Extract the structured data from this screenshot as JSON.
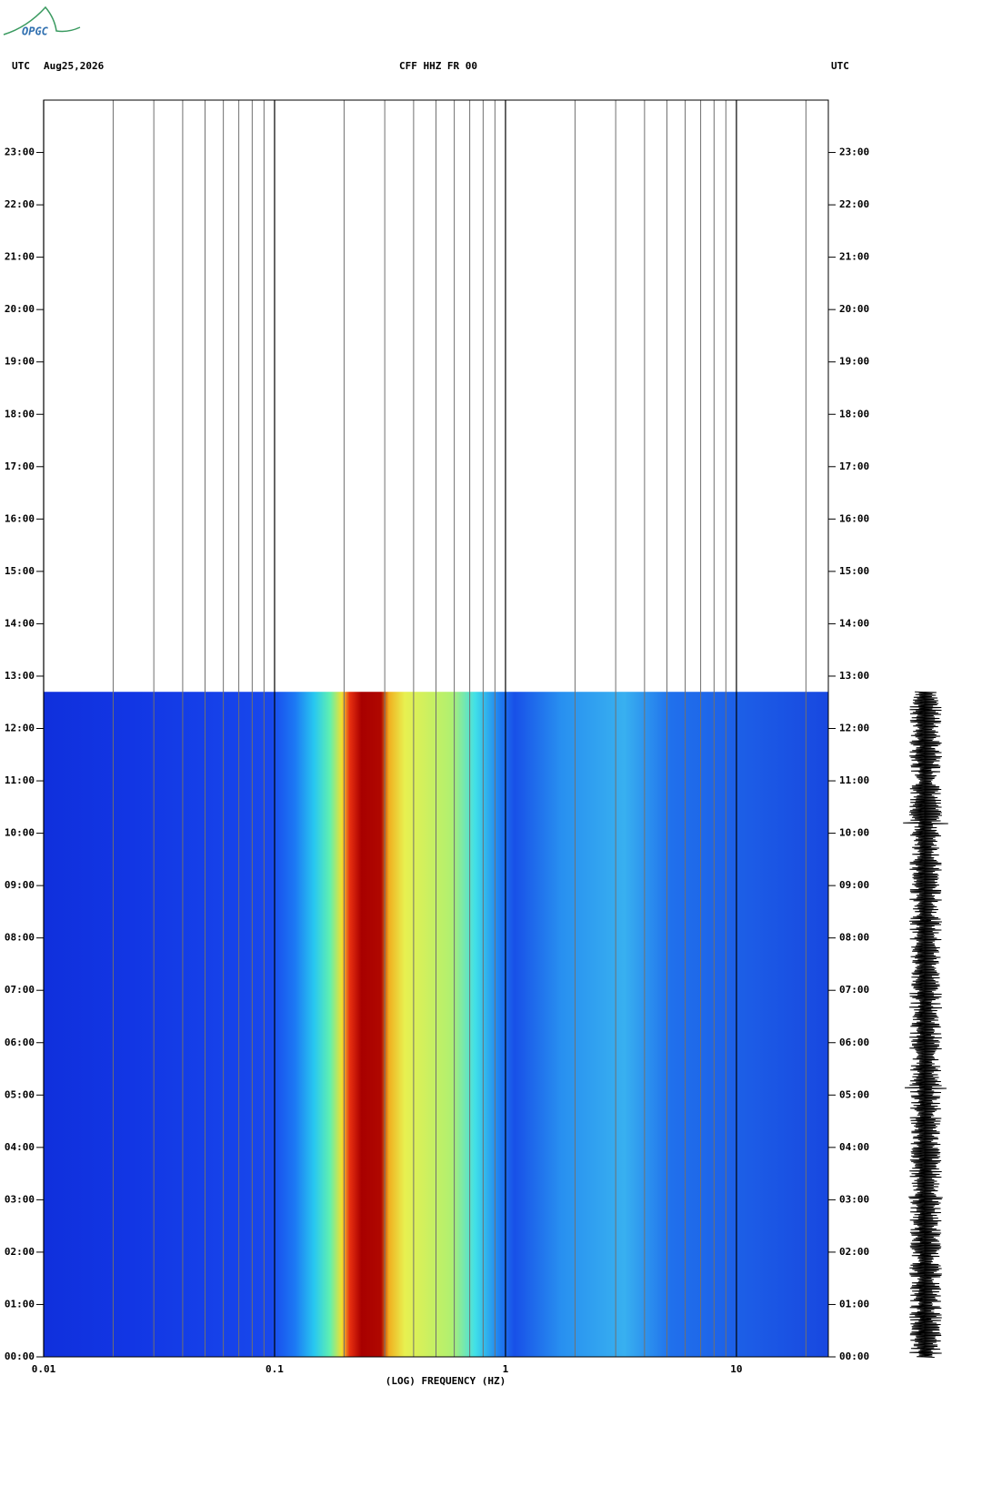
{
  "header": {
    "logo": "OPGC",
    "left_tz": "UTC",
    "date": "Aug25,2026",
    "station": "CFF HHZ FR 00",
    "right_tz": "UTC"
  },
  "chart_data": {
    "type": "spectrogram",
    "x_label": "(LOG) FREQUENCY (HZ)",
    "x_scale": "log",
    "xlim": [
      0.01,
      25
    ],
    "xticks": [
      0.01,
      0.1,
      1,
      10
    ],
    "xminorticks": [
      0.02,
      0.03,
      0.04,
      0.05,
      0.06,
      0.07,
      0.08,
      0.09,
      0.2,
      0.3,
      0.4,
      0.5,
      0.6,
      0.7,
      0.8,
      0.9,
      2,
      3,
      4,
      5,
      6,
      7,
      8,
      9,
      20
    ],
    "ylim": [
      0,
      24
    ],
    "yticks": [
      {
        "value": 0,
        "label": "00:00"
      },
      {
        "value": 1,
        "label": "01:00"
      },
      {
        "value": 2,
        "label": "02:00"
      },
      {
        "value": 3,
        "label": "03:00"
      },
      {
        "value": 4,
        "label": "04:00"
      },
      {
        "value": 5,
        "label": "05:00"
      },
      {
        "value": 6,
        "label": "06:00"
      },
      {
        "value": 7,
        "label": "07:00"
      },
      {
        "value": 8,
        "label": "08:00"
      },
      {
        "value": 9,
        "label": "09:00"
      },
      {
        "value": 10,
        "label": "10:00"
      },
      {
        "value": 11,
        "label": "11:00"
      },
      {
        "value": 12,
        "label": "12:00"
      },
      {
        "value": 13,
        "label": "13:00"
      },
      {
        "value": 14,
        "label": "14:00"
      },
      {
        "value": 15,
        "label": "15:00"
      },
      {
        "value": 16,
        "label": "16:00"
      },
      {
        "value": 17,
        "label": "17:00"
      },
      {
        "value": 18,
        "label": "18:00"
      },
      {
        "value": 19,
        "label": "19:00"
      },
      {
        "value": 20,
        "label": "20:00"
      },
      {
        "value": 21,
        "label": "21:00"
      },
      {
        "value": 22,
        "label": "22:00"
      },
      {
        "value": 23,
        "label": "23:00"
      }
    ],
    "data_end": 12.7,
    "grid": true
  }
}
